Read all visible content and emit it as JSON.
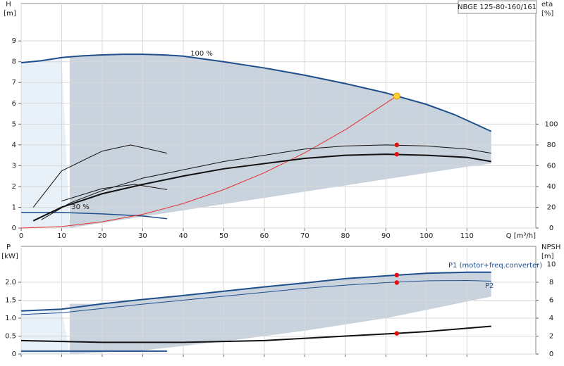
{
  "chart_data": [
    {
      "type": "line",
      "title": "NBGE 125-80-160/161",
      "y_label": "H",
      "y_unit": "[m]",
      "y2_label": "eta",
      "y2_unit": "[%]",
      "x_label": "Q [m³/h]",
      "annotations": [
        "100 %",
        "30 %"
      ],
      "xlim": [
        0,
        127
      ],
      "xticks": [
        0,
        10,
        20,
        30,
        40,
        50,
        60,
        70,
        80,
        90,
        100,
        110
      ],
      "show_xtick_labels": true,
      "ylim": [
        0,
        10.8
      ],
      "yticks": [
        0,
        1,
        2,
        3,
        4,
        5,
        6,
        7,
        8,
        9
      ],
      "y2lim": [
        0,
        216
      ],
      "y2ticks": [
        0,
        20,
        40,
        60,
        80,
        100
      ],
      "grid": true,
      "region_fill": "#c8d3de",
      "region_light": "#e8f0f8",
      "series": [
        {
          "color": "#1f4e8c",
          "width": 2,
          "x": [
            0,
            5,
            10,
            15,
            20,
            25,
            30,
            35,
            40,
            50,
            60,
            70,
            80,
            90,
            92.7,
            100,
            107,
            116
          ],
          "values": [
            7.95,
            8.05,
            8.2,
            8.28,
            8.33,
            8.36,
            8.36,
            8.33,
            8.27,
            8.0,
            7.7,
            7.35,
            6.95,
            6.5,
            6.35,
            5.95,
            5.45,
            4.65
          ]
        },
        {
          "color": "none",
          "fill": "#c8d3de",
          "width": 0,
          "x": [
            12,
            20,
            30,
            40,
            50,
            60,
            70,
            80,
            90,
            100,
            110,
            116
          ],
          "values": [
            0,
            0.25,
            0.55,
            0.85,
            1.15,
            1.45,
            1.75,
            2.05,
            2.35,
            2.65,
            2.95,
            3.1
          ]
        },
        {
          "color": "#1f4e8c",
          "width": 1.5,
          "x": [
            0,
            10,
            20,
            30,
            36
          ],
          "values": [
            0.75,
            0.75,
            0.68,
            0.58,
            0.45
          ]
        },
        {
          "color": "#e53030",
          "width": 1,
          "x": [
            0,
            10,
            20,
            30,
            40,
            50,
            60,
            70,
            80,
            92.7
          ],
          "values": [
            0,
            0.07,
            0.3,
            0.66,
            1.18,
            1.85,
            2.66,
            3.62,
            4.73,
            6.35
          ]
        },
        {
          "color": "#111",
          "width": 1,
          "axis": "y2",
          "x": [
            5,
            12,
            20,
            30,
            40,
            50,
            60,
            70,
            80,
            90,
            100,
            110,
            116
          ],
          "values": [
            8,
            24,
            36,
            48,
            56,
            64,
            70,
            76,
            79,
            80,
            79,
            76,
            72
          ]
        },
        {
          "color": "#111",
          "width": 2,
          "axis": "y2",
          "x": [
            3,
            10,
            20,
            30,
            40,
            50,
            60,
            70,
            80,
            90,
            100,
            110,
            116
          ],
          "values": [
            7,
            20,
            33,
            42,
            50,
            57,
            62,
            67,
            70,
            71,
            70,
            68,
            64
          ]
        },
        {
          "color": "#111",
          "width": 1,
          "axis": "y2",
          "x": [
            3,
            10,
            20,
            27,
            36
          ],
          "values": [
            20,
            55,
            74,
            80,
            72
          ]
        },
        {
          "color": "#111",
          "width": 1,
          "axis": "y2",
          "x": [
            10,
            20,
            28,
            36
          ],
          "values": [
            26,
            38,
            42,
            37
          ]
        }
      ],
      "points": [
        {
          "x": 92.7,
          "y": 6.35,
          "color": "#ffd23c"
        },
        {
          "x": 92.7,
          "y": 80,
          "axis": "y2",
          "color": "#e01010"
        },
        {
          "x": 92.7,
          "y": 71,
          "axis": "y2",
          "color": "#e01010"
        }
      ]
    },
    {
      "type": "line",
      "y_label": "P",
      "y_unit": "[kW]",
      "y2_label": "NPSH",
      "y2_unit": "[m]",
      "xlim": [
        0,
        127
      ],
      "xticks": [
        0,
        10,
        20,
        30,
        40,
        50,
        60,
        70,
        80,
        90,
        100,
        110
      ],
      "show_xtick_labels": false,
      "ylim": [
        0,
        3
      ],
      "yticks": [
        0,
        0.5,
        {
          "value": 1,
          "label": "1.0"
        },
        1.5,
        {
          "value": 2,
          "label": "2.0"
        }
      ],
      "y2lim": [
        0,
        12
      ],
      "y2ticks": [
        0,
        2,
        4,
        6,
        8,
        10
      ],
      "grid": true,
      "region_fill": "#c8d3de",
      "region_light": "#e8f0f8",
      "series": [
        {
          "name": "P1 (motor+freq.converter)",
          "color": "#1f4e8c",
          "width": 2,
          "x": [
            0,
            10,
            20,
            30,
            40,
            50,
            60,
            70,
            80,
            90,
            100,
            110,
            116
          ],
          "values": [
            1.2,
            1.25,
            1.4,
            1.52,
            1.63,
            1.75,
            1.87,
            1.98,
            2.1,
            2.18,
            2.25,
            2.28,
            2.28
          ]
        },
        {
          "color": "none",
          "fill": "#c8d3de",
          "width": 0,
          "x": [
            12,
            30,
            50,
            70,
            90,
            116
          ],
          "values": [
            0,
            0.1,
            0.35,
            0.65,
            1.0,
            1.6
          ]
        },
        {
          "name": "P2",
          "color": "#1f4e8c",
          "width": 1,
          "x": [
            0,
            10,
            20,
            30,
            40,
            50,
            60,
            70,
            80,
            90,
            100,
            110,
            116
          ],
          "values": [
            1.1,
            1.15,
            1.27,
            1.39,
            1.5,
            1.61,
            1.72,
            1.83,
            1.92,
            1.99,
            2.04,
            2.05,
            2.03
          ]
        },
        {
          "color": "#111",
          "width": 2,
          "axis": "y2",
          "x": [
            0,
            20,
            40,
            60,
            80,
            92.7,
            100,
            116
          ],
          "values": [
            1.5,
            1.3,
            1.3,
            1.5,
            2.0,
            2.3,
            2.5,
            3.1
          ]
        },
        {
          "color": "#1f4e8c",
          "width": 2,
          "x": [
            0,
            36
          ],
          "values": [
            0.08,
            0.08
          ]
        }
      ],
      "points": [
        {
          "x": 92.7,
          "y": 2.2,
          "color": "#e01010"
        },
        {
          "x": 92.7,
          "y": 1.99,
          "color": "#e01010"
        },
        {
          "x": 92.7,
          "y": 2.3,
          "axis": "y2",
          "color": "#e01010"
        }
      ]
    }
  ]
}
